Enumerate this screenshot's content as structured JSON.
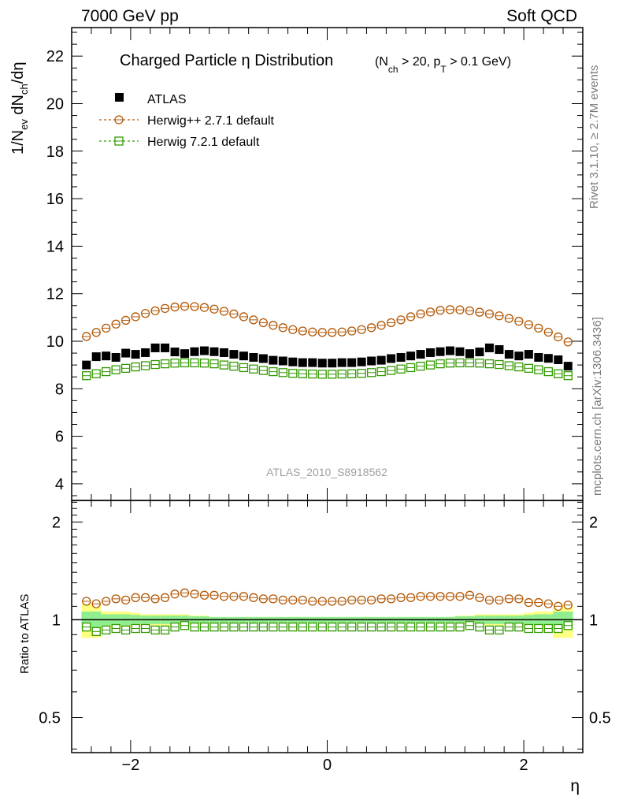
{
  "header": {
    "left": "7000 GeV pp",
    "right": "Soft QCD"
  },
  "side_labels": {
    "rivet": "Rivet 3.1.10, ≥ 2.7M events",
    "mcplots": "mcplots.cern.ch [arXiv:1306.3436]"
  },
  "chart_data": [
    {
      "type": "scatter",
      "title": "Charged Particle η Distribution",
      "subtitle": "(N_ch > 20, p_T > 0.1 GeV)",
      "annotation": "ATLAS_2010_S8918562",
      "xlabel": "η",
      "ylabel": "1/N_ev dN_ch/dη",
      "xlim": [
        -2.6,
        2.6
      ],
      "ylim": [
        3.3,
        23.2
      ],
      "yticks": [
        4,
        6,
        8,
        10,
        12,
        14,
        16,
        18,
        20,
        22
      ],
      "legend_position": "top-left",
      "x": [
        -2.45,
        -2.35,
        -2.25,
        -2.15,
        -2.05,
        -1.95,
        -1.85,
        -1.75,
        -1.65,
        -1.55,
        -1.45,
        -1.35,
        -1.25,
        -1.15,
        -1.05,
        -0.95,
        -0.85,
        -0.75,
        -0.65,
        -0.55,
        -0.45,
        -0.35,
        -0.25,
        -0.15,
        -0.05,
        0.05,
        0.15,
        0.25,
        0.35,
        0.45,
        0.55,
        0.65,
        0.75,
        0.85,
        0.95,
        1.05,
        1.15,
        1.25,
        1.35,
        1.45,
        1.55,
        1.65,
        1.75,
        1.85,
        1.95,
        2.05,
        2.15,
        2.25,
        2.35,
        2.45
      ],
      "series": [
        {
          "name": "ATLAS",
          "marker": "filled-square",
          "color": "#000000",
          "values": [
            9.0,
            9.35,
            9.38,
            9.32,
            9.5,
            9.45,
            9.52,
            9.72,
            9.72,
            9.55,
            9.48,
            9.56,
            9.6,
            9.56,
            9.52,
            9.45,
            9.38,
            9.32,
            9.27,
            9.2,
            9.17,
            9.13,
            9.1,
            9.1,
            9.08,
            9.08,
            9.1,
            9.1,
            9.13,
            9.17,
            9.2,
            9.27,
            9.32,
            9.38,
            9.45,
            9.52,
            9.56,
            9.6,
            9.56,
            9.48,
            9.55,
            9.72,
            9.65,
            9.45,
            9.38,
            9.45,
            9.32,
            9.28,
            9.22,
            8.95
          ]
        },
        {
          "name": "Herwig++ 2.7.1 default",
          "marker": "open-circle",
          "color": "#b35806",
          "values": [
            10.2,
            10.37,
            10.55,
            10.72,
            10.88,
            11.03,
            11.17,
            11.28,
            11.38,
            11.44,
            11.47,
            11.46,
            11.42,
            11.35,
            11.26,
            11.15,
            11.03,
            10.9,
            10.78,
            10.67,
            10.57,
            10.49,
            10.43,
            10.39,
            10.37,
            10.37,
            10.39,
            10.43,
            10.49,
            10.57,
            10.67,
            10.78,
            10.9,
            11.03,
            11.15,
            11.23,
            11.3,
            11.33,
            11.32,
            11.28,
            11.22,
            11.15,
            11.07,
            10.96,
            10.84,
            10.7,
            10.55,
            10.38,
            10.18,
            9.97
          ]
        },
        {
          "name": "Herwig 7.2.1 default",
          "marker": "open-square",
          "color": "#339900",
          "values": [
            8.55,
            8.63,
            8.72,
            8.8,
            8.86,
            8.92,
            8.97,
            9.02,
            9.05,
            9.08,
            9.09,
            9.09,
            9.08,
            9.05,
            9.0,
            8.95,
            8.89,
            8.83,
            8.77,
            8.72,
            8.68,
            8.65,
            8.63,
            8.62,
            8.61,
            8.61,
            8.62,
            8.63,
            8.65,
            8.68,
            8.72,
            8.77,
            8.83,
            8.89,
            8.95,
            9.0,
            9.05,
            9.08,
            9.09,
            9.09,
            9.08,
            9.05,
            9.02,
            8.97,
            8.92,
            8.86,
            8.8,
            8.72,
            8.63,
            8.55
          ]
        }
      ]
    },
    {
      "type": "scatter",
      "ylabel": "Ratio to ATLAS",
      "xlabel": "η",
      "xlim": [
        -2.6,
        2.6
      ],
      "ylim": [
        0.39,
        2.33
      ],
      "yscale": "log",
      "xticks": [
        -2,
        0,
        2
      ],
      "yticks": [
        0.5,
        1,
        2
      ],
      "band": {
        "color_stat": "#90ee90",
        "color_syst": "#ffff80",
        "halfwidth_stat": [
          0.06,
          0.06,
          0.04,
          0.04,
          0.04,
          0.035,
          0.03,
          0.03,
          0.03,
          0.03,
          0.03,
          0.025,
          0.025,
          0.02,
          0.02,
          0.02,
          0.02,
          0.02,
          0.02,
          0.02,
          0.02,
          0.02,
          0.02,
          0.02,
          0.02,
          0.02,
          0.02,
          0.02,
          0.02,
          0.02,
          0.02,
          0.02,
          0.02,
          0.02,
          0.02,
          0.02,
          0.02,
          0.02,
          0.025,
          0.025,
          0.03,
          0.03,
          0.03,
          0.03,
          0.03,
          0.035,
          0.04,
          0.04,
          0.06,
          0.06
        ],
        "halfwidth_syst": [
          0.12,
          0.12,
          0.06,
          0.06,
          0.06,
          0.05,
          0.04,
          0.04,
          0.04,
          0.04,
          0.04,
          0.03,
          0.03,
          0.02,
          0.02,
          0.02,
          0.02,
          0.02,
          0.02,
          0.02,
          0.02,
          0.02,
          0.02,
          0.02,
          0.02,
          0.02,
          0.02,
          0.02,
          0.02,
          0.02,
          0.02,
          0.02,
          0.02,
          0.02,
          0.02,
          0.02,
          0.02,
          0.02,
          0.03,
          0.03,
          0.04,
          0.04,
          0.04,
          0.04,
          0.04,
          0.05,
          0.06,
          0.06,
          0.12,
          0.12
        ]
      },
      "series": [
        {
          "name": "Herwig++ 2.7.1 default",
          "marker": "open-circle",
          "color": "#b35806",
          "values": [
            1.14,
            1.12,
            1.14,
            1.16,
            1.15,
            1.17,
            1.17,
            1.16,
            1.17,
            1.2,
            1.21,
            1.2,
            1.19,
            1.19,
            1.18,
            1.18,
            1.18,
            1.17,
            1.16,
            1.16,
            1.15,
            1.15,
            1.15,
            1.14,
            1.14,
            1.14,
            1.14,
            1.15,
            1.15,
            1.15,
            1.16,
            1.16,
            1.17,
            1.17,
            1.18,
            1.18,
            1.18,
            1.18,
            1.18,
            1.19,
            1.17,
            1.15,
            1.15,
            1.16,
            1.16,
            1.13,
            1.13,
            1.12,
            1.1,
            1.11
          ]
        },
        {
          "name": "Herwig 7.2.1 default",
          "marker": "open-square",
          "color": "#339900",
          "values": [
            0.95,
            0.92,
            0.93,
            0.94,
            0.93,
            0.94,
            0.94,
            0.93,
            0.93,
            0.95,
            0.96,
            0.95,
            0.95,
            0.95,
            0.95,
            0.95,
            0.95,
            0.95,
            0.95,
            0.95,
            0.95,
            0.95,
            0.95,
            0.95,
            0.95,
            0.95,
            0.95,
            0.95,
            0.95,
            0.95,
            0.95,
            0.95,
            0.95,
            0.95,
            0.95,
            0.95,
            0.95,
            0.95,
            0.95,
            0.96,
            0.95,
            0.93,
            0.93,
            0.95,
            0.95,
            0.94,
            0.94,
            0.94,
            0.94,
            0.96
          ]
        }
      ]
    }
  ]
}
